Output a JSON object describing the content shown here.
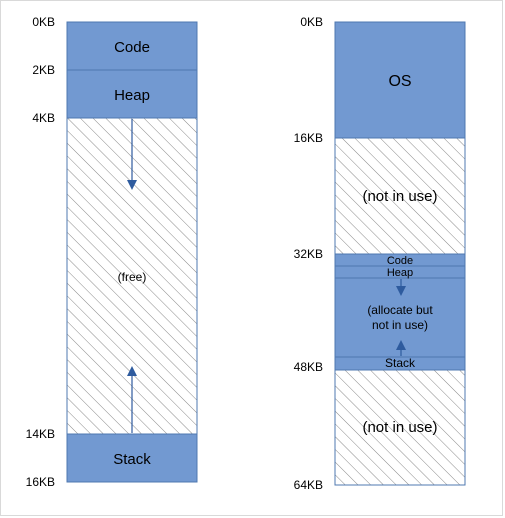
{
  "colors": {
    "segment_fill": "#7299d1",
    "segment_border": "#4f78b0",
    "hatch_line": "#8a8a8a",
    "arrow": "#2e5b9e"
  },
  "left_diagram": {
    "ticks": [
      "0KB",
      "2KB",
      "4KB",
      "14KB",
      "16KB"
    ],
    "code_label": "Code",
    "heap_label": "Heap",
    "free_label": "(free)",
    "stack_label": "Stack"
  },
  "right_diagram": {
    "ticks": [
      "0KB",
      "16KB",
      "32KB",
      "48KB",
      "64KB"
    ],
    "os_label": "OS",
    "not_in_use_top_label": "(not in use)",
    "code_label": "Code",
    "heap_label": "Heap",
    "allocated_label_line1": "(allocate but",
    "allocated_label_line2": "not in use)",
    "stack_label": "Stack",
    "not_in_use_bottom_label": "(not in use)"
  }
}
